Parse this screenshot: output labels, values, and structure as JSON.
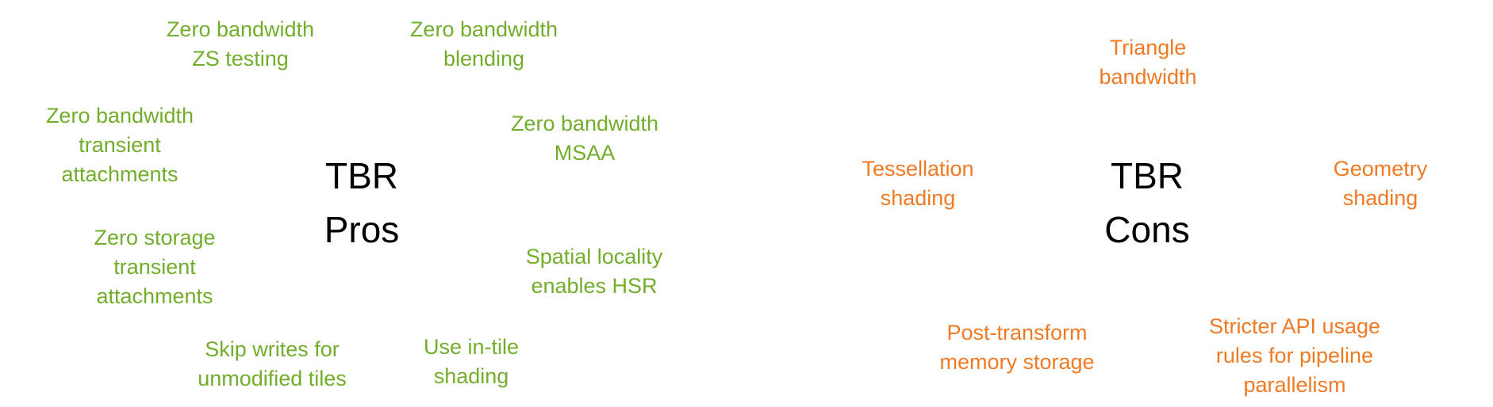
{
  "colors": {
    "pros": "#72ad2b",
    "cons": "#f07a24",
    "center": "#000000"
  },
  "pros": {
    "center_lines": [
      "TBR",
      "Pros"
    ],
    "items": [
      {
        "name": "zs-testing",
        "lines": [
          "Zero bandwidth",
          "ZS testing"
        ]
      },
      {
        "name": "blending",
        "lines": [
          "Zero bandwidth",
          "blending"
        ]
      },
      {
        "name": "transient-attachments-bandwidth",
        "lines": [
          "Zero bandwidth",
          "transient",
          "attachments"
        ]
      },
      {
        "name": "msaa",
        "lines": [
          "Zero bandwidth",
          "MSAA"
        ]
      },
      {
        "name": "transient-attachments-storage",
        "lines": [
          "Zero storage",
          "transient",
          "attachments"
        ]
      },
      {
        "name": "spatial-locality",
        "lines": [
          "Spatial locality",
          "enables HSR"
        ]
      },
      {
        "name": "skip-writes",
        "lines": [
          "Skip writes for",
          "unmodified tiles"
        ]
      },
      {
        "name": "in-tile-shading",
        "lines": [
          "Use in-tile",
          "shading"
        ]
      }
    ]
  },
  "cons": {
    "center_lines": [
      "TBR",
      "Cons"
    ],
    "items": [
      {
        "name": "triangle-bandwidth",
        "lines": [
          "Triangle",
          "bandwidth"
        ]
      },
      {
        "name": "tessellation-shading",
        "lines": [
          "Tessellation",
          "shading"
        ]
      },
      {
        "name": "geometry-shading",
        "lines": [
          "Geometry",
          "shading"
        ]
      },
      {
        "name": "post-transform-storage",
        "lines": [
          "Post-transform",
          "memory storage"
        ]
      },
      {
        "name": "stricter-api-usage",
        "lines": [
          "Stricter API usage",
          "rules for pipeline",
          "parallelism"
        ]
      }
    ]
  }
}
